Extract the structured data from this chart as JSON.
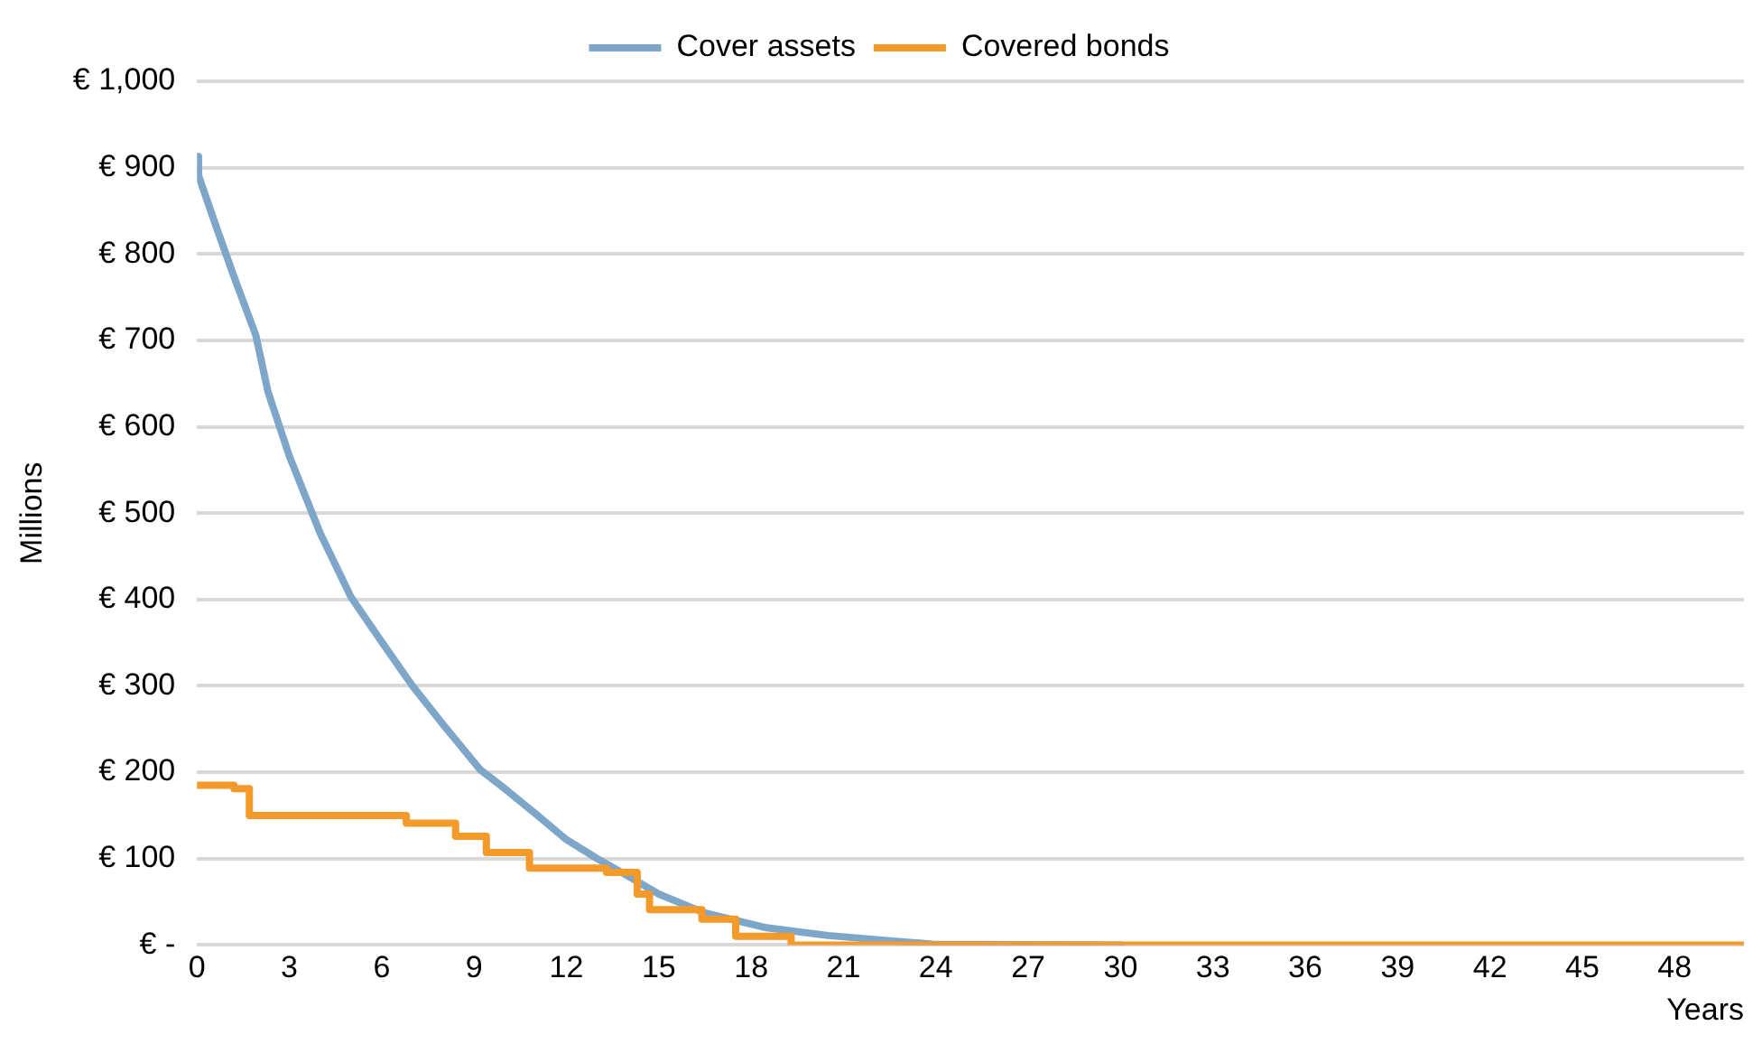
{
  "chart_data": {
    "type": "line",
    "xlabel": "Years",
    "ylabel": "Millions",
    "xlim": [
      0,
      50.25
    ],
    "xticks": [
      0,
      3,
      6,
      9,
      12,
      15,
      18,
      21,
      24,
      27,
      30,
      33,
      36,
      39,
      42,
      45,
      48
    ],
    "ylim": [
      0,
      1000
    ],
    "yticks": [
      {
        "value": 0,
        "label": "€ -"
      },
      {
        "value": 100,
        "label": "€ 100"
      },
      {
        "value": 200,
        "label": "€ 200"
      },
      {
        "value": 300,
        "label": "€ 300"
      },
      {
        "value": 400,
        "label": "€ 400"
      },
      {
        "value": 500,
        "label": "€ 500"
      },
      {
        "value": 600,
        "label": "€ 600"
      },
      {
        "value": 700,
        "label": "€ 700"
      },
      {
        "value": 800,
        "label": "€ 800"
      },
      {
        "value": 900,
        "label": "€ 900"
      },
      {
        "value": 1000,
        "label": "€ 1,000"
      }
    ],
    "grid": "y",
    "legend": "top",
    "marker": "none",
    "series": [
      {
        "name": "Cover assets",
        "color": "#7ea6c9",
        "x": [
          0,
          0.05,
          0.62,
          1.21,
          1.91,
          2.31,
          3.0,
          4.0,
          5.0,
          6.0,
          7.0,
          8.0,
          9.2,
          10.0,
          11.0,
          12.0,
          13.0,
          14.0,
          15.0,
          16.5,
          18.5,
          20.5,
          22.5,
          23.9,
          30
        ],
        "values": [
          913,
          891,
          832,
          773,
          706,
          640,
          566,
          477,
          403,
          351,
          300,
          255,
          203,
          181,
          152,
          122,
          100,
          80,
          59,
          37,
          20,
          11,
          5,
          1,
          0
        ]
      },
      {
        "name": "Covered bonds",
        "type": "step",
        "color": "#f39a2b",
        "x": [
          0,
          1.2,
          1.7,
          6.8,
          8.4,
          9.4,
          10.8,
          13.3,
          14.3,
          14.7,
          16.4,
          17.5,
          19.3,
          50.25
        ],
        "values": [
          185,
          181,
          150,
          141,
          126,
          107,
          89,
          84,
          59,
          41,
          30,
          10,
          0,
          0
        ]
      }
    ]
  }
}
